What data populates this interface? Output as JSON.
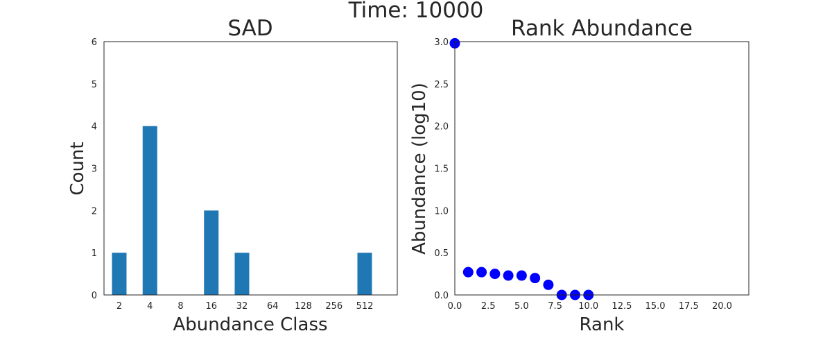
{
  "figure": {
    "suptitle": "Time: 10000"
  },
  "chart_data": [
    {
      "type": "bar",
      "title": "SAD",
      "xlabel": "Abundance Class",
      "ylabel": "Count",
      "categories": [
        "2",
        "4",
        "8",
        "16",
        "32",
        "64",
        "128",
        "256",
        "512"
      ],
      "values": [
        1,
        4,
        0,
        2,
        1,
        0,
        0,
        0,
        1
      ],
      "ylim": [
        0,
        6
      ],
      "yticks": [
        "0",
        "1",
        "2",
        "3",
        "4",
        "5",
        "6"
      ],
      "grid": false,
      "color": "#1f77b4"
    },
    {
      "type": "scatter",
      "title": "Rank Abundance",
      "xlabel": "Rank",
      "ylabel": "Abundance (log10)",
      "x": [
        0,
        1,
        2,
        3,
        4,
        5,
        6,
        7,
        8,
        9,
        10
      ],
      "y": [
        2.98,
        0.27,
        0.27,
        0.25,
        0.23,
        0.23,
        0.2,
        0.12,
        0.0,
        0.0,
        0.0
      ],
      "xlim": [
        0,
        22
      ],
      "ylim": [
        0,
        3
      ],
      "xticks": [
        "0.0",
        "2.5",
        "5.0",
        "7.5",
        "10.0",
        "12.5",
        "15.0",
        "17.5",
        "20.0"
      ],
      "yticks": [
        "0.0",
        "0.5",
        "1.0",
        "1.5",
        "2.0",
        "2.5",
        "3.0"
      ],
      "grid": false,
      "color": "#0000ff"
    }
  ]
}
